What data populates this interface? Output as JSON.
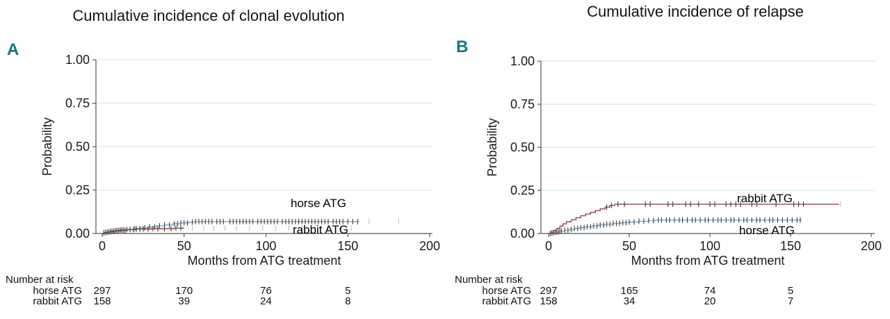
{
  "figure": {
    "background": "#ffffff",
    "accent_teal": "#0e7d7b",
    "gridline_color": "#dceeea",
    "horse_line_color": "#7fa3c4",
    "rabbit_line_color": "#8b3a4b"
  },
  "chart_data": [
    {
      "panel_label": "A",
      "type": "line",
      "subtype": "cumulative-incidence-step",
      "title": "Cumulative incidence of clonal evolution",
      "xlabel": "Months from ATG treatment",
      "ylabel": "Probability",
      "xlim": [
        0,
        200
      ],
      "ylim": [
        0,
        1
      ],
      "x_ticks": [
        0,
        50,
        100,
        150,
        200
      ],
      "y_ticks": [
        0,
        0.25,
        0.5,
        0.75,
        1
      ],
      "y_tick_labels": [
        "0.00",
        "0.25",
        "0.50",
        "0.75",
        "1.00"
      ],
      "grid": "horizontal light-teal lines at y ticks, legend as in-plot labels",
      "series": [
        {
          "name": "horse ATG",
          "color": "#7fa3c4",
          "final_value": 0.07,
          "step_points": [
            [
              0,
              0
            ],
            [
              2,
              0.004
            ],
            [
              5,
              0.008
            ],
            [
              8,
              0.013
            ],
            [
              12,
              0.018
            ],
            [
              16,
              0.023
            ],
            [
              20,
              0.028
            ],
            [
              24,
              0.033
            ],
            [
              28,
              0.038
            ],
            [
              33,
              0.044
            ],
            [
              38,
              0.05
            ],
            [
              43,
              0.056
            ],
            [
              48,
              0.061
            ],
            [
              53,
              0.066
            ],
            [
              57,
              0.069
            ],
            [
              157,
              0.069
            ]
          ],
          "censor_ticks": [
            14,
            17,
            20,
            23,
            26,
            29,
            32,
            35,
            38,
            41,
            44,
            46,
            48,
            50,
            52,
            55,
            57,
            59,
            61,
            63,
            65,
            67,
            70,
            72,
            74,
            78,
            80,
            82,
            84,
            86,
            88,
            90,
            92,
            95,
            97,
            99,
            101,
            103,
            105,
            107,
            110,
            112,
            114,
            116,
            118,
            120,
            122,
            124,
            126,
            128,
            130,
            132,
            134,
            136,
            138,
            141,
            143,
            145,
            147,
            150,
            153,
            156
          ],
          "censor_ticks_light": [
            163,
            181
          ]
        },
        {
          "name": "rabbit ATG",
          "color": "#8b3a4b",
          "final_value": 0.03,
          "step_points": [
            [
              0,
              0
            ],
            [
              1,
              0.005
            ],
            [
              3,
              0.009
            ],
            [
              5,
              0.013
            ],
            [
              8,
              0.017
            ],
            [
              11,
              0.02
            ],
            [
              15,
              0.023
            ],
            [
              20,
              0.026
            ],
            [
              30,
              0.028
            ],
            [
              44,
              0.031
            ],
            [
              50,
              0.031
            ]
          ],
          "censor_ticks": [
            1,
            2,
            3,
            4,
            5,
            6,
            7,
            8,
            9,
            10,
            11,
            12,
            13,
            15,
            17,
            19,
            21,
            23,
            25,
            28,
            31,
            34,
            38,
            42,
            45,
            48
          ],
          "censor_ticks_light": [
            55,
            62,
            68,
            75,
            82,
            90,
            98,
            106,
            114,
            122,
            130,
            138,
            146,
            152
          ]
        }
      ],
      "number_at_risk": {
        "header": "Number at risk",
        "times": [
          0,
          50,
          100,
          150
        ],
        "rows": [
          {
            "label": "horse ATG",
            "values": [
              "297",
              "170",
              "76",
              "5"
            ]
          },
          {
            "label": "rabbit ATG",
            "values": [
              "158",
              "39",
              "24",
              "8"
            ]
          }
        ]
      }
    },
    {
      "panel_label": "B",
      "type": "line",
      "subtype": "cumulative-incidence-step",
      "title": "Cumulative incidence of relapse",
      "xlabel": "Months from ATG treatment",
      "ylabel": "Probability",
      "xlim": [
        0,
        200
      ],
      "ylim": [
        0,
        1
      ],
      "x_ticks": [
        0,
        50,
        100,
        150,
        200
      ],
      "y_ticks": [
        0,
        0.25,
        0.5,
        0.75,
        1
      ],
      "y_tick_labels": [
        "0.00",
        "0.25",
        "0.50",
        "0.75",
        "1.00"
      ],
      "grid": "horizontal light-teal lines at y ticks, legend as in-plot labels",
      "series": [
        {
          "name": "horse ATG",
          "color": "#7fa3c4",
          "final_value": 0.08,
          "step_points": [
            [
              0,
              0
            ],
            [
              2,
              0.004
            ],
            [
              4,
              0.009
            ],
            [
              7,
              0.014
            ],
            [
              10,
              0.019
            ],
            [
              13,
              0.024
            ],
            [
              16,
              0.029
            ],
            [
              19,
              0.034
            ],
            [
              23,
              0.039
            ],
            [
              27,
              0.044
            ],
            [
              31,
              0.049
            ],
            [
              35,
              0.054
            ],
            [
              40,
              0.059
            ],
            [
              45,
              0.063
            ],
            [
              50,
              0.067
            ],
            [
              56,
              0.071
            ],
            [
              62,
              0.075
            ],
            [
              66,
              0.078
            ],
            [
              157,
              0.078
            ]
          ],
          "censor_ticks": [
            1,
            2,
            3,
            4,
            5,
            6,
            7,
            8,
            10,
            12,
            14,
            16,
            18,
            20,
            22,
            24,
            26,
            28,
            30,
            32,
            34,
            36,
            38,
            40,
            42,
            44,
            46,
            48,
            50,
            53,
            56,
            59,
            62,
            65,
            68,
            70,
            73,
            75,
            78,
            81,
            83,
            86,
            89,
            91,
            94,
            97,
            99,
            102,
            105,
            107,
            110,
            113,
            115,
            118,
            121,
            123,
            126,
            129,
            131,
            134,
            137,
            139,
            142,
            145,
            148,
            151,
            154,
            156
          ],
          "censor_ticks_light": []
        },
        {
          "name": "rabbit ATG",
          "color": "#8b3a4b",
          "final_value": 0.17,
          "step_points": [
            [
              0,
              0
            ],
            [
              1,
              0.008
            ],
            [
              3,
              0.018
            ],
            [
              5,
              0.03
            ],
            [
              7,
              0.043
            ],
            [
              9,
              0.056
            ],
            [
              11,
              0.068
            ],
            [
              14,
              0.08
            ],
            [
              17,
              0.092
            ],
            [
              20,
              0.103
            ],
            [
              23,
              0.113
            ],
            [
              26,
              0.123
            ],
            [
              29,
              0.133
            ],
            [
              32,
              0.143
            ],
            [
              35,
              0.153
            ],
            [
              38,
              0.163
            ],
            [
              41,
              0.17
            ],
            [
              180,
              0.17
            ]
          ],
          "censor_ticks": [
            36,
            39,
            43,
            47,
            60,
            63,
            74,
            77,
            85,
            88,
            93,
            100,
            103,
            110,
            113,
            116,
            119,
            126,
            129,
            141,
            152,
            155,
            158
          ],
          "censor_ticks_light": [
            181
          ]
        }
      ],
      "number_at_risk": {
        "header": "Number at risk",
        "times": [
          0,
          50,
          100,
          150
        ],
        "rows": [
          {
            "label": "horse ATG",
            "values": [
              "297",
              "165",
              "74",
              "5"
            ]
          },
          {
            "label": "rabbit ATG",
            "values": [
              "158",
              "34",
              "20",
              "7"
            ]
          }
        ]
      }
    }
  ]
}
